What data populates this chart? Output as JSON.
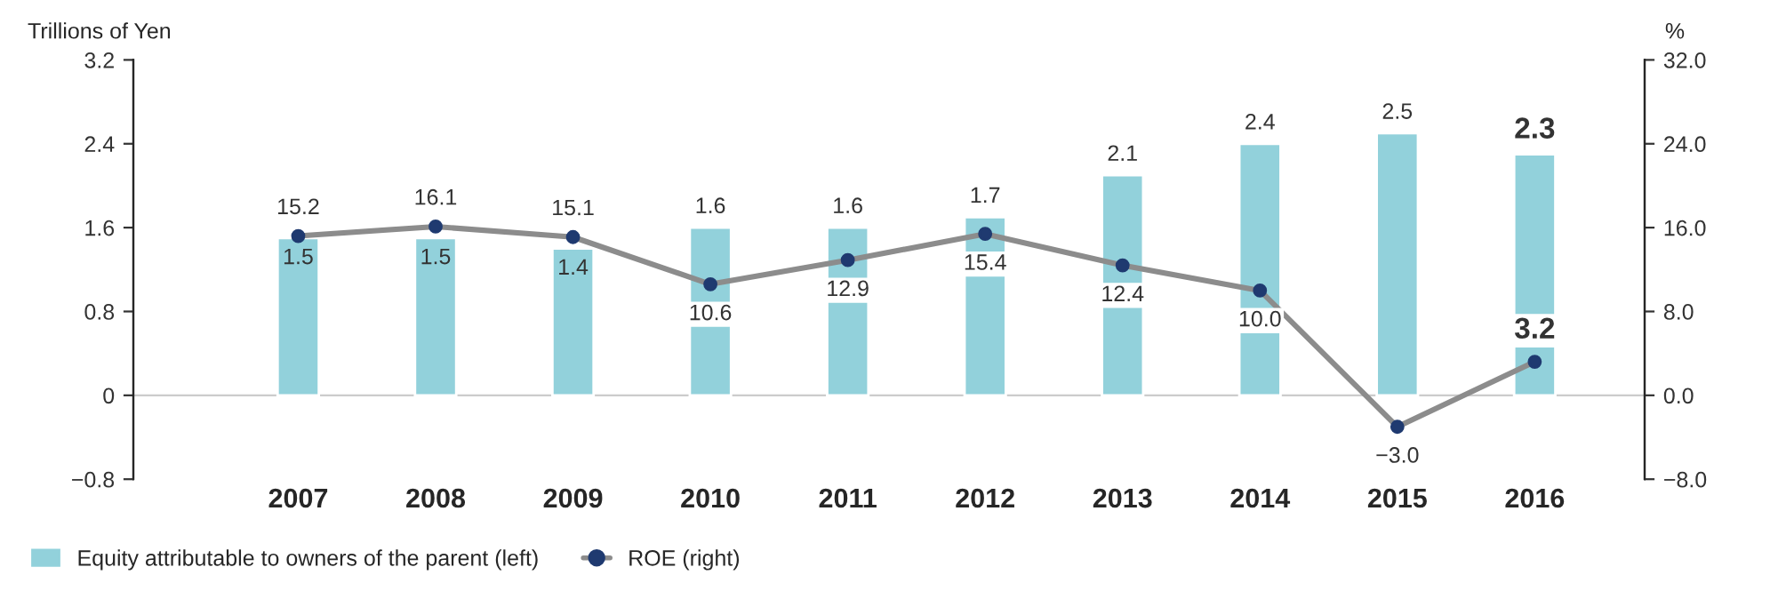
{
  "chart_data": {
    "type": "bar",
    "categories": [
      "2007",
      "2008",
      "2009",
      "2010",
      "2011",
      "2012",
      "2013",
      "2014",
      "2015",
      "2016"
    ],
    "ylabel": "Trillions of Yen",
    "y2label": "%",
    "series": [
      {
        "name": "Equity attributable to owners of the parent (left)",
        "color": "#92d1db",
        "values": [
          1.5,
          1.5,
          1.4,
          1.6,
          1.6,
          1.7,
          2.1,
          2.4,
          2.5,
          2.3
        ],
        "value_labels": [
          "1.5",
          "1.5",
          "1.4",
          "1.6",
          "1.6",
          "1.7",
          "2.1",
          "2.4",
          "2.5",
          "2.3"
        ]
      },
      {
        "name": "ROE (right)",
        "type": "line",
        "axis": "y2",
        "color": "#8c8c8c",
        "colors": [
          "#1f3a70",
          "#1f3a70",
          "#1f3a70",
          "#1f3a70",
          "#1f3a70",
          "#1f3a70",
          "#1f3a70",
          "#1f3a70",
          "#1f3a70",
          "#1f3a70"
        ],
        "marker": "circle",
        "values": [
          15.2,
          16.1,
          15.1,
          10.6,
          12.9,
          15.4,
          12.4,
          10.0,
          -3.0,
          3.2
        ],
        "value_labels": [
          "15.2",
          "16.1",
          "15.1",
          "10.6",
          "12.9",
          "15.4",
          "12.4",
          "10.0",
          "−3.0",
          "3.2"
        ]
      }
    ],
    "ylim": [
      -0.8,
      3.2
    ],
    "yticks": [
      {
        "value": -0.8,
        "label": "−0.8"
      },
      0,
      0.8,
      1.6,
      2.4,
      3.2
    ],
    "y2lim": [
      -8,
      32
    ],
    "y2ticks": [
      {
        "value": -8,
        "label": "−8.0"
      },
      {
        "value": 0,
        "label": "0.0"
      },
      {
        "value": 8,
        "label": "8.0"
      },
      {
        "value": 16,
        "label": "16.0"
      },
      {
        "value": 24,
        "label": "24.0"
      },
      {
        "value": 32,
        "label": "32.0"
      }
    ],
    "ref_lines": [
      {
        "axis": "y",
        "value": 0,
        "color": "#cccccc"
      }
    ],
    "grid": false,
    "legend": "bottom left"
  }
}
